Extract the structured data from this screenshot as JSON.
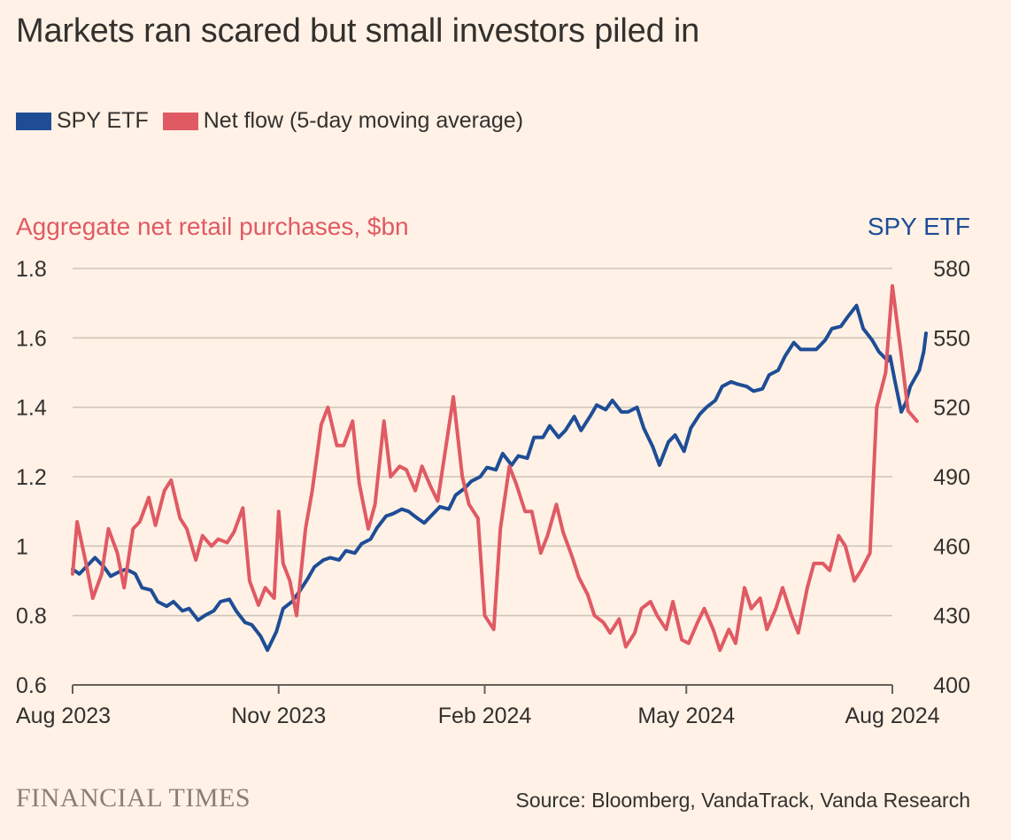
{
  "title": "Markets ran scared but small investors piled in",
  "legend": [
    {
      "label": "SPY ETF",
      "color": "#1E4D96"
    },
    {
      "label": "Net flow (5-day moving average)",
      "color": "#E05A64"
    }
  ],
  "source": "Source: Bloomberg, VandaTrack, Vanda Research",
  "logo": "FINANCIAL TIMES",
  "chart_data": {
    "type": "line",
    "title": "Markets ran scared but small investors piled in",
    "left_axis": {
      "label": "Aggregate net retail purchases, $bn",
      "range": [
        0.6,
        1.8
      ],
      "ticks": [
        0.6,
        0.8,
        1,
        1.2,
        1.4,
        1.6,
        1.8
      ],
      "tick_labels": [
        "0.6",
        "0.8",
        "1",
        "1.2",
        "1.4",
        "1.6",
        "1.8"
      ],
      "color": "#E05A64"
    },
    "right_axis": {
      "label": "SPY ETF",
      "range": [
        400,
        580
      ],
      "ticks": [
        400,
        430,
        460,
        490,
        520,
        550,
        580
      ],
      "tick_labels": [
        "400",
        "430",
        "460",
        "490",
        "520",
        "550",
        "580"
      ],
      "color": "#1E4D96"
    },
    "x_axis": {
      "range": [
        "2023-08-01",
        "2024-08-01"
      ],
      "ticks": [
        "2023-08-01",
        "2023-11-01",
        "2024-02-01",
        "2024-05-01",
        "2024-08-01"
      ],
      "tick_labels": [
        "Aug 2023",
        "Nov 2023",
        "Feb 2024",
        "May 2024",
        "Aug 2024"
      ]
    },
    "grid": true,
    "series": [
      {
        "name": "SPY ETF",
        "axis": "right",
        "color": "#1E4D96",
        "points": [
          [
            "2023-08-01",
            450
          ],
          [
            "2023-08-04",
            448
          ],
          [
            "2023-08-08",
            452
          ],
          [
            "2023-08-11",
            455
          ],
          [
            "2023-08-15",
            451
          ],
          [
            "2023-08-18",
            447
          ],
          [
            "2023-08-22",
            449
          ],
          [
            "2023-08-25",
            450
          ],
          [
            "2023-08-29",
            448
          ],
          [
            "2023-09-01",
            442
          ],
          [
            "2023-09-05",
            441
          ],
          [
            "2023-09-08",
            436
          ],
          [
            "2023-09-12",
            434
          ],
          [
            "2023-09-15",
            436
          ],
          [
            "2023-09-19",
            432
          ],
          [
            "2023-09-22",
            433
          ],
          [
            "2023-09-26",
            428
          ],
          [
            "2023-09-29",
            430
          ],
          [
            "2023-10-03",
            432
          ],
          [
            "2023-10-06",
            436
          ],
          [
            "2023-10-10",
            437
          ],
          [
            "2023-10-13",
            432
          ],
          [
            "2023-10-17",
            427
          ],
          [
            "2023-10-20",
            426
          ],
          [
            "2023-10-24",
            421
          ],
          [
            "2023-10-27",
            415
          ],
          [
            "2023-10-31",
            423
          ],
          [
            "2023-11-03",
            433
          ],
          [
            "2023-11-07",
            436
          ],
          [
            "2023-11-10",
            440
          ],
          [
            "2023-11-14",
            446
          ],
          [
            "2023-11-17",
            451
          ],
          [
            "2023-11-21",
            454
          ],
          [
            "2023-11-24",
            455
          ],
          [
            "2023-11-28",
            454
          ],
          [
            "2023-12-01",
            458
          ],
          [
            "2023-12-05",
            457
          ],
          [
            "2023-12-08",
            461
          ],
          [
            "2023-12-12",
            463
          ],
          [
            "2023-12-15",
            468
          ],
          [
            "2023-12-19",
            473
          ],
          [
            "2023-12-22",
            474
          ],
          [
            "2023-12-26",
            476
          ],
          [
            "2023-12-29",
            475
          ],
          [
            "2024-01-02",
            472
          ],
          [
            "2024-01-05",
            470
          ],
          [
            "2024-01-09",
            474
          ],
          [
            "2024-01-12",
            477
          ],
          [
            "2024-01-16",
            476
          ],
          [
            "2024-01-19",
            482
          ],
          [
            "2024-01-23",
            485
          ],
          [
            "2024-01-26",
            488
          ],
          [
            "2024-01-30",
            490
          ],
          [
            "2024-02-02",
            494
          ],
          [
            "2024-02-06",
            493
          ],
          [
            "2024-02-09",
            500
          ],
          [
            "2024-02-13",
            495
          ],
          [
            "2024-02-16",
            499
          ],
          [
            "2024-02-20",
            498
          ],
          [
            "2024-02-23",
            507
          ],
          [
            "2024-02-27",
            507
          ],
          [
            "2024-03-01",
            512
          ],
          [
            "2024-03-05",
            507
          ],
          [
            "2024-03-08",
            510
          ],
          [
            "2024-03-12",
            516
          ],
          [
            "2024-03-15",
            510
          ],
          [
            "2024-03-19",
            516
          ],
          [
            "2024-03-22",
            521
          ],
          [
            "2024-03-26",
            519
          ],
          [
            "2024-03-29",
            523
          ],
          [
            "2024-04-02",
            518
          ],
          [
            "2024-04-05",
            518
          ],
          [
            "2024-04-09",
            520
          ],
          [
            "2024-04-12",
            511
          ],
          [
            "2024-04-16",
            503
          ],
          [
            "2024-04-19",
            495
          ],
          [
            "2024-04-23",
            505
          ],
          [
            "2024-04-26",
            508
          ],
          [
            "2024-04-30",
            501
          ],
          [
            "2024-05-03",
            511
          ],
          [
            "2024-05-07",
            517
          ],
          [
            "2024-05-10",
            520
          ],
          [
            "2024-05-14",
            523
          ],
          [
            "2024-05-17",
            529
          ],
          [
            "2024-05-21",
            531
          ],
          [
            "2024-05-24",
            530
          ],
          [
            "2024-05-28",
            529
          ],
          [
            "2024-05-31",
            527
          ],
          [
            "2024-06-04",
            528
          ],
          [
            "2024-06-07",
            534
          ],
          [
            "2024-06-11",
            536
          ],
          [
            "2024-06-14",
            542
          ],
          [
            "2024-06-18",
            548
          ],
          [
            "2024-06-21",
            545
          ],
          [
            "2024-06-25",
            545
          ],
          [
            "2024-06-28",
            545
          ],
          [
            "2024-07-02",
            549
          ],
          [
            "2024-07-05",
            554
          ],
          [
            "2024-07-09",
            555
          ],
          [
            "2024-07-12",
            559
          ],
          [
            "2024-07-16",
            564
          ],
          [
            "2024-07-19",
            554
          ],
          [
            "2024-07-23",
            549
          ],
          [
            "2024-07-26",
            544
          ],
          [
            "2024-07-30",
            540
          ],
          [
            "2024-07-31",
            542
          ],
          [
            "2024-08-02",
            532
          ],
          [
            "2024-08-05",
            518
          ],
          [
            "2024-08-07",
            522
          ],
          [
            "2024-08-09",
            529
          ],
          [
            "2024-08-13",
            536
          ],
          [
            "2024-08-15",
            544
          ],
          [
            "2024-08-16",
            552
          ]
        ]
      },
      {
        "name": "Net flow (5-day moving average)",
        "axis": "left",
        "color": "#E05A64",
        "points": [
          [
            "2023-08-01",
            0.92
          ],
          [
            "2023-08-03",
            1.07
          ],
          [
            "2023-08-07",
            0.95
          ],
          [
            "2023-08-10",
            0.85
          ],
          [
            "2023-08-14",
            0.92
          ],
          [
            "2023-08-17",
            1.05
          ],
          [
            "2023-08-21",
            0.98
          ],
          [
            "2023-08-24",
            0.88
          ],
          [
            "2023-08-28",
            1.05
          ],
          [
            "2023-08-31",
            1.07
          ],
          [
            "2023-09-04",
            1.14
          ],
          [
            "2023-09-07",
            1.06
          ],
          [
            "2023-09-11",
            1.16
          ],
          [
            "2023-09-14",
            1.19
          ],
          [
            "2023-09-18",
            1.08
          ],
          [
            "2023-09-21",
            1.05
          ],
          [
            "2023-09-25",
            0.96
          ],
          [
            "2023-09-28",
            1.03
          ],
          [
            "2023-10-02",
            1.0
          ],
          [
            "2023-10-05",
            1.02
          ],
          [
            "2023-10-09",
            1.01
          ],
          [
            "2023-10-12",
            1.04
          ],
          [
            "2023-10-16",
            1.11
          ],
          [
            "2023-10-19",
            0.9
          ],
          [
            "2023-10-23",
            0.83
          ],
          [
            "2023-10-26",
            0.88
          ],
          [
            "2023-10-30",
            0.85
          ],
          [
            "2023-11-01",
            1.1
          ],
          [
            "2023-11-03",
            0.95
          ],
          [
            "2023-11-06",
            0.9
          ],
          [
            "2023-11-09",
            0.8
          ],
          [
            "2023-11-13",
            1.05
          ],
          [
            "2023-11-16",
            1.16
          ],
          [
            "2023-11-20",
            1.35
          ],
          [
            "2023-11-23",
            1.4
          ],
          [
            "2023-11-27",
            1.29
          ],
          [
            "2023-11-30",
            1.29
          ],
          [
            "2023-12-04",
            1.36
          ],
          [
            "2023-12-07",
            1.18
          ],
          [
            "2023-12-11",
            1.05
          ],
          [
            "2023-12-14",
            1.12
          ],
          [
            "2023-12-18",
            1.36
          ],
          [
            "2023-12-21",
            1.2
          ],
          [
            "2023-12-25",
            1.23
          ],
          [
            "2023-12-28",
            1.22
          ],
          [
            "2024-01-01",
            1.16
          ],
          [
            "2024-01-04",
            1.23
          ],
          [
            "2024-01-08",
            1.17
          ],
          [
            "2024-01-11",
            1.13
          ],
          [
            "2024-01-15",
            1.3
          ],
          [
            "2024-01-18",
            1.43
          ],
          [
            "2024-01-22",
            1.2
          ],
          [
            "2024-01-25",
            1.12
          ],
          [
            "2024-01-29",
            1.08
          ],
          [
            "2024-02-01",
            0.8
          ],
          [
            "2024-02-05",
            0.76
          ],
          [
            "2024-02-08",
            1.05
          ],
          [
            "2024-02-12",
            1.23
          ],
          [
            "2024-02-15",
            1.18
          ],
          [
            "2024-02-19",
            1.1
          ],
          [
            "2024-02-22",
            1.1
          ],
          [
            "2024-02-26",
            0.98
          ],
          [
            "2024-02-29",
            1.03
          ],
          [
            "2024-03-04",
            1.12
          ],
          [
            "2024-03-07",
            1.04
          ],
          [
            "2024-03-11",
            0.97
          ],
          [
            "2024-03-14",
            0.91
          ],
          [
            "2024-03-18",
            0.86
          ],
          [
            "2024-03-21",
            0.8
          ],
          [
            "2024-03-25",
            0.78
          ],
          [
            "2024-03-28",
            0.75
          ],
          [
            "2024-04-01",
            0.79
          ],
          [
            "2024-04-04",
            0.71
          ],
          [
            "2024-04-08",
            0.75
          ],
          [
            "2024-04-11",
            0.82
          ],
          [
            "2024-04-15",
            0.84
          ],
          [
            "2024-04-18",
            0.8
          ],
          [
            "2024-04-22",
            0.76
          ],
          [
            "2024-04-25",
            0.84
          ],
          [
            "2024-04-29",
            0.73
          ],
          [
            "2024-05-02",
            0.72
          ],
          [
            "2024-05-06",
            0.78
          ],
          [
            "2024-05-09",
            0.82
          ],
          [
            "2024-05-13",
            0.76
          ],
          [
            "2024-05-16",
            0.7
          ],
          [
            "2024-05-20",
            0.76
          ],
          [
            "2024-05-23",
            0.72
          ],
          [
            "2024-05-27",
            0.88
          ],
          [
            "2024-05-30",
            0.82
          ],
          [
            "2024-06-03",
            0.85
          ],
          [
            "2024-06-06",
            0.76
          ],
          [
            "2024-06-10",
            0.82
          ],
          [
            "2024-06-13",
            0.88
          ],
          [
            "2024-06-17",
            0.8
          ],
          [
            "2024-06-20",
            0.75
          ],
          [
            "2024-06-24",
            0.88
          ],
          [
            "2024-06-27",
            0.95
          ],
          [
            "2024-07-01",
            0.95
          ],
          [
            "2024-07-04",
            0.93
          ],
          [
            "2024-07-08",
            1.03
          ],
          [
            "2024-07-11",
            1.0
          ],
          [
            "2024-07-15",
            0.9
          ],
          [
            "2024-07-18",
            0.93
          ],
          [
            "2024-07-22",
            0.98
          ],
          [
            "2024-07-25",
            1.4
          ],
          [
            "2024-07-29",
            1.5
          ],
          [
            "2024-08-01",
            1.75
          ],
          [
            "2024-08-05",
            1.55
          ],
          [
            "2024-08-08",
            1.39
          ],
          [
            "2024-08-12",
            1.36
          ]
        ]
      }
    ]
  }
}
